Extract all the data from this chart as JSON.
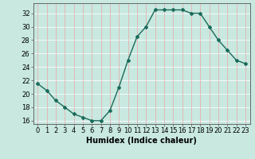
{
  "x": [
    0,
    1,
    2,
    3,
    4,
    5,
    6,
    7,
    8,
    9,
    10,
    11,
    12,
    13,
    14,
    15,
    16,
    17,
    18,
    19,
    20,
    21,
    22,
    23
  ],
  "y": [
    21.5,
    20.5,
    19.0,
    18.0,
    17.0,
    16.5,
    16.0,
    16.0,
    17.5,
    21.0,
    25.0,
    28.5,
    30.0,
    32.5,
    32.5,
    32.5,
    32.5,
    32.0,
    32.0,
    30.0,
    28.0,
    26.5,
    25.0,
    24.5
  ],
  "line_color": "#1a6b5a",
  "marker": "D",
  "marker_size": 2.0,
  "background_color": "#c8e8e0",
  "grid_color": "#ffffff",
  "grid_red_color": "#e8b0b0",
  "xlabel": "Humidex (Indice chaleur)",
  "ylabel": "",
  "xlim": [
    -0.5,
    23.5
  ],
  "ylim": [
    15.5,
    33.5
  ],
  "yticks": [
    16,
    18,
    20,
    22,
    24,
    26,
    28,
    30,
    32
  ],
  "xticks": [
    0,
    1,
    2,
    3,
    4,
    5,
    6,
    7,
    8,
    9,
    10,
    11,
    12,
    13,
    14,
    15,
    16,
    17,
    18,
    19,
    20,
    21,
    22,
    23
  ],
  "tick_fontsize": 6,
  "xlabel_fontsize": 7,
  "line_width": 1.0
}
